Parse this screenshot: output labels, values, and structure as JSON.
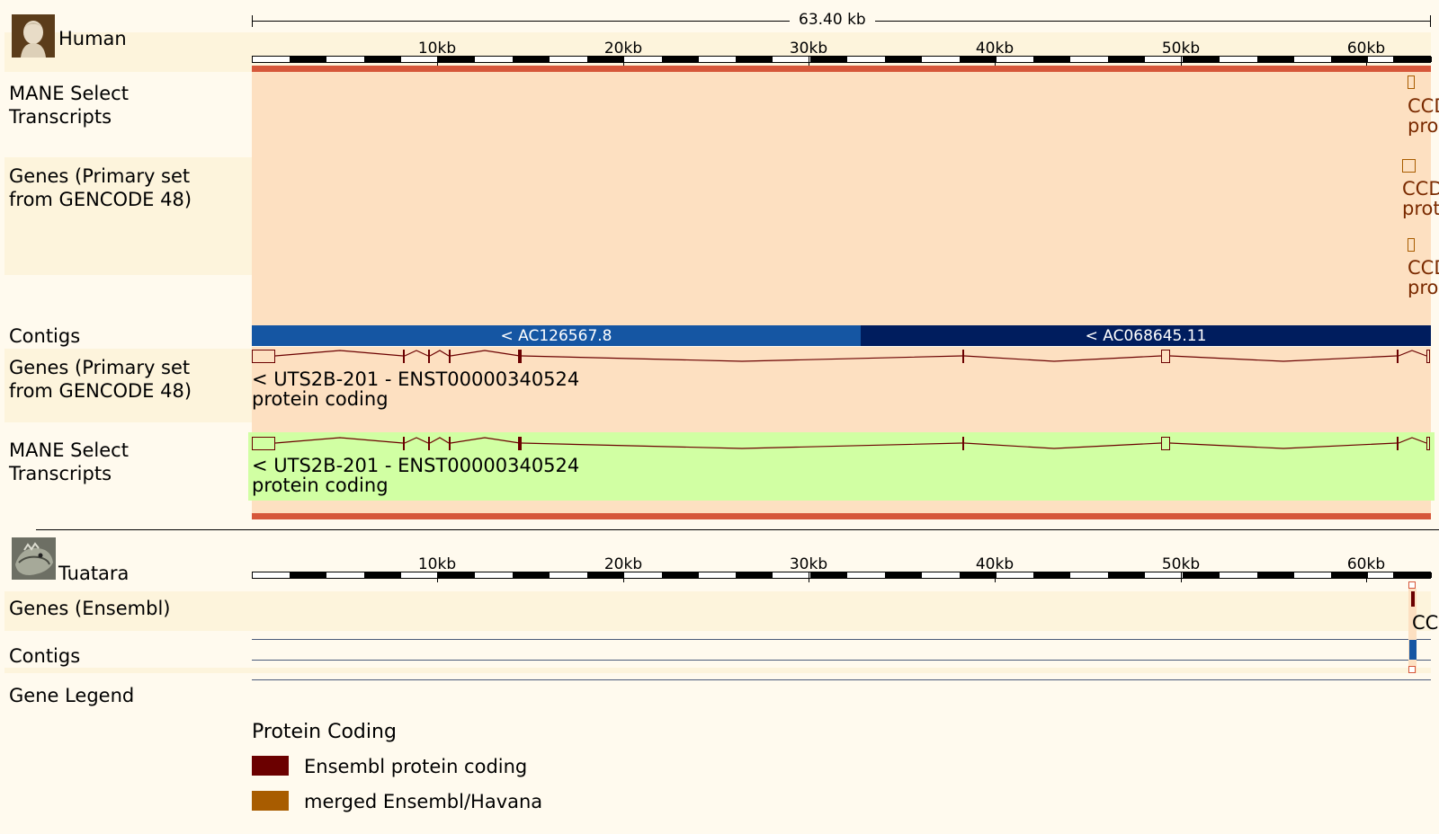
{
  "scale": {
    "length_label": "63.40 kb",
    "ticks": [
      "10kb",
      "20kb",
      "30kb",
      "40kb",
      "50kb",
      "60kb"
    ]
  },
  "human": {
    "species": "Human",
    "avatar_icon": "human-bust-icon",
    "tracks": {
      "mane_top": "MANE Select Transcripts",
      "genes_top": "Genes (Primary set from GENCODE 48)",
      "contigs": "Contigs",
      "genes_bottom": "Genes (Primary set from GENCODE 48)",
      "mane_bottom": "MANE Select Transcripts"
    },
    "edge_labels": {
      "mane_top_l1": "CCD",
      "mane_top_l2": "pro",
      "genes_top_a_l1": "CCD",
      "genes_top_a_l2": "prot",
      "genes_top_b_l1": "CCD",
      "genes_top_b_l2": "pro"
    },
    "contigs": [
      {
        "name": "< AC126567.8",
        "color": "#1556a3"
      },
      {
        "name": "< AC068645.11",
        "color": "#001d5e"
      }
    ],
    "transcript": {
      "name": "< UTS2B-201 - ENST00000340524",
      "biotype": "protein coding"
    },
    "mane_transcript": {
      "name": "< UTS2B-201 - ENST00000340524",
      "biotype": "protein coding"
    },
    "colors": {
      "highlight": "#fde0c1",
      "mane_green": "#d1ffa3",
      "orange_bar": "#d6573a",
      "exon": "#6b0000"
    }
  },
  "tuatara": {
    "species": "Tuatara",
    "avatar_icon": "tuatara-icon",
    "tracks": {
      "genes": "Genes (Ensembl)",
      "contigs": "Contigs",
      "legend": "Gene Legend"
    },
    "edge_label": "CC"
  },
  "legend": {
    "heading": "Protein Coding",
    "items": [
      {
        "label": "Ensembl protein coding",
        "color": "#6b0000"
      },
      {
        "label": "merged Ensembl/Havana",
        "color": "#a85c00"
      }
    ]
  }
}
